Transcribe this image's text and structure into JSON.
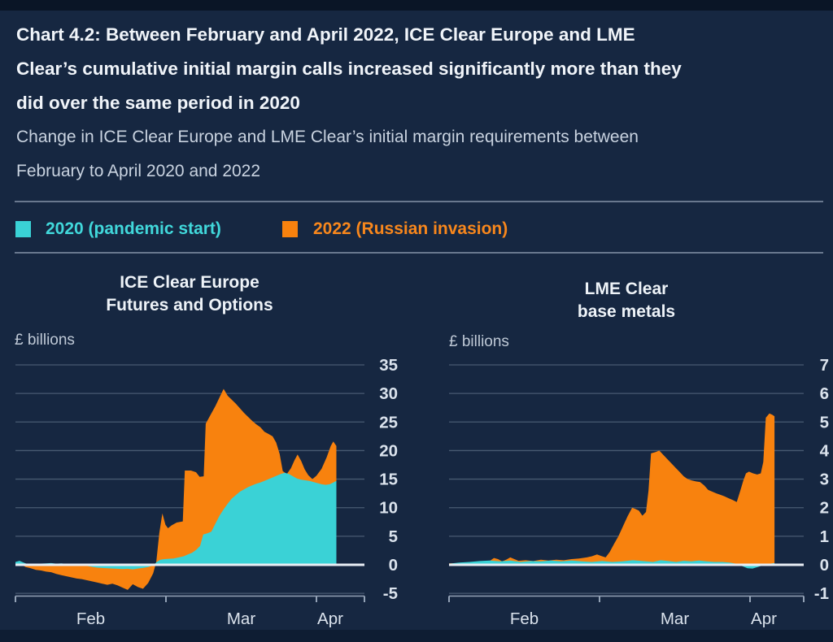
{
  "header": {
    "title_lines": [
      "Chart 4.2: Between February and April 2022, ICE Clear Europe and LME",
      "Clear’s cumulative initial margin calls increased significantly more than they",
      "did over the same period in 2020"
    ],
    "subtitle_lines": [
      "Change in ICE Clear Europe and LME Clear’s initial margin requirements between",
      "February to April 2020 and 2022"
    ]
  },
  "legend": {
    "items": [
      {
        "label": "2020 (pandemic start)",
        "color": "#3ad2d6",
        "text_color": "#41d8db"
      },
      {
        "label": "2022 (Russian invasion)",
        "color": "#f8820e",
        "text_color": "#f8871c"
      }
    ]
  },
  "colors": {
    "background": "#162741",
    "top_band": "#0a1526",
    "bottom_band": "#0e1d33",
    "gridline": "#4e6077",
    "zero_line": "#e9eef5",
    "axis": "#93a2b6",
    "tick_label": "#dbe3ed",
    "teal": "#3ad2d6",
    "orange": "#f8820e"
  },
  "chart_data": [
    {
      "type": "area",
      "title_lines": [
        "ICE Clear Europe",
        "Futures and Options"
      ],
      "ylabel": "£ billions",
      "ylim": [
        -5,
        35
      ],
      "y_ticks": [
        35,
        30,
        25,
        20,
        15,
        10,
        5,
        0,
        -5
      ],
      "x_tick_labels": [
        "Feb",
        "Mar",
        "Apr"
      ],
      "x_unit": "days from 1 February",
      "grid": "on",
      "legend_position": "top",
      "series": [
        {
          "name": "2020 (pandemic start)",
          "color": "#3ad2d6",
          "points": [
            [
              0,
              0.5
            ],
            [
              0.8,
              0.7
            ],
            [
              1.6,
              0.4
            ],
            [
              2.4,
              0.1
            ],
            [
              3,
              -0.2
            ],
            [
              3.6,
              0
            ],
            [
              4.5,
              0.2
            ],
            [
              6,
              0.25
            ],
            [
              7,
              0.3
            ],
            [
              8,
              0.2
            ],
            [
              9,
              0.25
            ],
            [
              10,
              0.15
            ],
            [
              11,
              0.2
            ],
            [
              12,
              0.1
            ],
            [
              13,
              0
            ],
            [
              14,
              -0.2
            ],
            [
              15,
              -0.35
            ],
            [
              16,
              -0.5
            ],
            [
              17,
              -0.55
            ],
            [
              18,
              -0.6
            ],
            [
              19,
              -0.65
            ],
            [
              20,
              -0.7
            ],
            [
              21,
              -0.75
            ],
            [
              22,
              -0.7
            ],
            [
              23,
              -0.8
            ],
            [
              24,
              -0.65
            ],
            [
              25,
              -0.55
            ],
            [
              26,
              -0.4
            ],
            [
              27,
              -0.1
            ],
            [
              27.7,
              0.5
            ],
            [
              28.4,
              0.9
            ],
            [
              29.2,
              1
            ],
            [
              30,
              1.05
            ],
            [
              31,
              1.1
            ],
            [
              32,
              1.3
            ],
            [
              33,
              1.5
            ],
            [
              33.8,
              1.8
            ],
            [
              34.6,
              2.1
            ],
            [
              35.4,
              2.6
            ],
            [
              36.2,
              3.3
            ],
            [
              36.8,
              5.3
            ],
            [
              37.6,
              5.5
            ],
            [
              38.4,
              5.8
            ],
            [
              39.2,
              7.2
            ],
            [
              40,
              8.6
            ],
            [
              40.8,
              9.7
            ],
            [
              41.6,
              10.7
            ],
            [
              42.4,
              11.6
            ],
            [
              43.2,
              12.2
            ],
            [
              44,
              12.8
            ],
            [
              44.8,
              13.2
            ],
            [
              45.6,
              13.6
            ],
            [
              46.4,
              13.9
            ],
            [
              47.2,
              14.2
            ],
            [
              48,
              14.4
            ],
            [
              48.8,
              14.7
            ],
            [
              49.6,
              15
            ],
            [
              50.4,
              15.3
            ],
            [
              51.2,
              15.6
            ],
            [
              52,
              15.9
            ],
            [
              52.8,
              16.1
            ],
            [
              53.6,
              15.9
            ],
            [
              54.4,
              15.5
            ],
            [
              55.2,
              15.1
            ],
            [
              56,
              14.9
            ],
            [
              56.8,
              14.8
            ],
            [
              57.6,
              14.7
            ],
            [
              58.4,
              14.5
            ],
            [
              59.2,
              14.3
            ],
            [
              60,
              14.1
            ],
            [
              60.8,
              14
            ],
            [
              61.6,
              14.1
            ],
            [
              62.3,
              14.4
            ],
            [
              62.9,
              14.7
            ]
          ]
        },
        {
          "name": "2022 (Russian invasion)",
          "color": "#f8820e",
          "points": [
            [
              0,
              0.3
            ],
            [
              1,
              0.1
            ],
            [
              2,
              -0.4
            ],
            [
              3,
              -0.6
            ],
            [
              4,
              -0.9
            ],
            [
              5,
              -1
            ],
            [
              6,
              -1.2
            ],
            [
              7,
              -1.3
            ],
            [
              8,
              -1.6
            ],
            [
              9,
              -1.8
            ],
            [
              10,
              -2
            ],
            [
              11,
              -2.2
            ],
            [
              12,
              -2.4
            ],
            [
              13,
              -2.5
            ],
            [
              14,
              -2.7
            ],
            [
              15,
              -2.9
            ],
            [
              16,
              -3.1
            ],
            [
              17,
              -3.3
            ],
            [
              18,
              -3.5
            ],
            [
              19,
              -3.3
            ],
            [
              20,
              -3.6
            ],
            [
              21,
              -4
            ],
            [
              22,
              -4.4
            ],
            [
              23,
              -3.4
            ],
            [
              24,
              -3.9
            ],
            [
              25,
              -4.2
            ],
            [
              26,
              -3.2
            ],
            [
              27,
              -1.5
            ],
            [
              27.6,
              0.5
            ],
            [
              28.2,
              5.5
            ],
            [
              28.8,
              9
            ],
            [
              29.4,
              7
            ],
            [
              29.9,
              6.4
            ],
            [
              30.6,
              6.9
            ],
            [
              31.6,
              7.4
            ],
            [
              32.8,
              7.6
            ],
            [
              33.2,
              16.5
            ],
            [
              34.4,
              16.5
            ],
            [
              35.4,
              16.2
            ],
            [
              36.1,
              15.4
            ],
            [
              36.9,
              15.5
            ],
            [
              37.3,
              24.7
            ],
            [
              38.2,
              26.2
            ],
            [
              39.2,
              27.8
            ],
            [
              40,
              29.3
            ],
            [
              40.8,
              30.8
            ],
            [
              41.6,
              29.6
            ],
            [
              42.4,
              28.9
            ],
            [
              43.2,
              28.2
            ],
            [
              44,
              27.4
            ],
            [
              44.8,
              26.6
            ],
            [
              45.6,
              25.9
            ],
            [
              46.4,
              25.2
            ],
            [
              47.2,
              24.6
            ],
            [
              48,
              24.1
            ],
            [
              48.8,
              23.3
            ],
            [
              49.6,
              22.9
            ],
            [
              50.4,
              22.5
            ],
            [
              51.1,
              21.4
            ],
            [
              51.8,
              19.4
            ],
            [
              52.4,
              16.4
            ],
            [
              53.2,
              15.9
            ],
            [
              54,
              16.9
            ],
            [
              54.7,
              18.3
            ],
            [
              55.3,
              19.3
            ],
            [
              56,
              18.2
            ],
            [
              56.7,
              16.7
            ],
            [
              57.4,
              15.7
            ],
            [
              58.2,
              15
            ],
            [
              59,
              15.6
            ],
            [
              60,
              16.8
            ],
            [
              61,
              18.8
            ],
            [
              61.8,
              20.8
            ],
            [
              62.3,
              21.6
            ],
            [
              62.9,
              20.8
            ]
          ]
        }
      ]
    },
    {
      "type": "area",
      "title_lines": [
        "LME Clear",
        "base metals"
      ],
      "ylabel": "£ billions",
      "ylim": [
        -1,
        7
      ],
      "y_ticks": [
        7,
        6,
        5,
        4,
        3,
        2,
        1,
        0,
        -1
      ],
      "x_tick_labels": [
        "Feb",
        "Mar",
        "Apr"
      ],
      "x_unit": "days from 1 February",
      "grid": "on",
      "legend_position": "top",
      "series": [
        {
          "name": "2020 (pandemic start)",
          "color": "#3ad2d6",
          "points": [
            [
              0,
              0.04
            ],
            [
              2,
              0.08
            ],
            [
              4,
              0.1
            ],
            [
              6,
              0.13
            ],
            [
              8,
              0.15
            ],
            [
              10,
              0.12
            ],
            [
              12,
              0.15
            ],
            [
              14,
              0.1
            ],
            [
              16,
              0.13
            ],
            [
              18,
              0.12
            ],
            [
              20,
              0.15
            ],
            [
              22,
              0.12
            ],
            [
              24,
              0.15
            ],
            [
              26,
              0.12
            ],
            [
              28,
              0.1
            ],
            [
              30,
              0.13
            ],
            [
              32,
              0.1
            ],
            [
              34,
              0.12
            ],
            [
              36,
              0.16
            ],
            [
              38,
              0.13
            ],
            [
              40,
              0.1
            ],
            [
              41.5,
              0.16
            ],
            [
              43,
              0.13
            ],
            [
              44.5,
              0.1
            ],
            [
              46,
              0.14
            ],
            [
              47.5,
              0.12
            ],
            [
              49,
              0.15
            ],
            [
              50.5,
              0.12
            ],
            [
              52,
              0.1
            ],
            [
              53.5,
              0.1
            ],
            [
              55,
              0.08
            ],
            [
              56.5,
              0.03
            ],
            [
              57.5,
              -0.05
            ],
            [
              58.5,
              -0.12
            ],
            [
              59.5,
              -0.13
            ],
            [
              60.5,
              -0.08
            ],
            [
              61.5,
              -0.02
            ],
            [
              62.5,
              0.02
            ],
            [
              63.3,
              0.05
            ],
            [
              63.8,
              0.06
            ]
          ]
        },
        {
          "name": "2022 (Russian invasion)",
          "color": "#f8820e",
          "points": [
            [
              0,
              0.05
            ],
            [
              2,
              0.06
            ],
            [
              4,
              0.08
            ],
            [
              6,
              0.1
            ],
            [
              8,
              0.14
            ],
            [
              8.8,
              0.24
            ],
            [
              9.6,
              0.2
            ],
            [
              10.4,
              0.12
            ],
            [
              11.2,
              0.18
            ],
            [
              12,
              0.26
            ],
            [
              12.8,
              0.2
            ],
            [
              13.6,
              0.14
            ],
            [
              15,
              0.16
            ],
            [
              16.5,
              0.13
            ],
            [
              18,
              0.18
            ],
            [
              19.5,
              0.15
            ],
            [
              21,
              0.18
            ],
            [
              22.5,
              0.16
            ],
            [
              24,
              0.2
            ],
            [
              25.5,
              0.22
            ],
            [
              27,
              0.26
            ],
            [
              28,
              0.3
            ],
            [
              29,
              0.36
            ],
            [
              30,
              0.3
            ],
            [
              30.7,
              0.26
            ],
            [
              31.5,
              0.45
            ],
            [
              32.3,
              0.72
            ],
            [
              33.2,
              1
            ],
            [
              34.1,
              1.35
            ],
            [
              35,
              1.7
            ],
            [
              35.9,
              2
            ],
            [
              36.6,
              1.95
            ],
            [
              37.2,
              1.9
            ],
            [
              37.9,
              1.72
            ],
            [
              38.6,
              1.85
            ],
            [
              39.1,
              2.6
            ],
            [
              39.6,
              3.9
            ],
            [
              40.5,
              3.95
            ],
            [
              41.2,
              4
            ],
            [
              42,
              3.85
            ],
            [
              42.8,
              3.7
            ],
            [
              43.6,
              3.55
            ],
            [
              44.4,
              3.4
            ],
            [
              45.2,
              3.25
            ],
            [
              46,
              3.1
            ],
            [
              46.8,
              3
            ],
            [
              47.6,
              2.95
            ],
            [
              48.4,
              2.92
            ],
            [
              49.2,
              2.9
            ],
            [
              50,
              2.78
            ],
            [
              50.8,
              2.62
            ],
            [
              51.6,
              2.56
            ],
            [
              52.4,
              2.5
            ],
            [
              53.2,
              2.45
            ],
            [
              54,
              2.4
            ],
            [
              54.8,
              2.33
            ],
            [
              55.6,
              2.27
            ],
            [
              56.4,
              2.2
            ],
            [
              57.1,
              2.6
            ],
            [
              57.7,
              2.95
            ],
            [
              58.2,
              3.2
            ],
            [
              58.8,
              3.26
            ],
            [
              59.6,
              3.2
            ],
            [
              60.4,
              3.16
            ],
            [
              61.1,
              3.2
            ],
            [
              61.6,
              3.6
            ],
            [
              62.1,
              5.15
            ],
            [
              62.8,
              5.3
            ],
            [
              63.4,
              5.25
            ],
            [
              63.8,
              5.2
            ]
          ]
        }
      ]
    }
  ]
}
